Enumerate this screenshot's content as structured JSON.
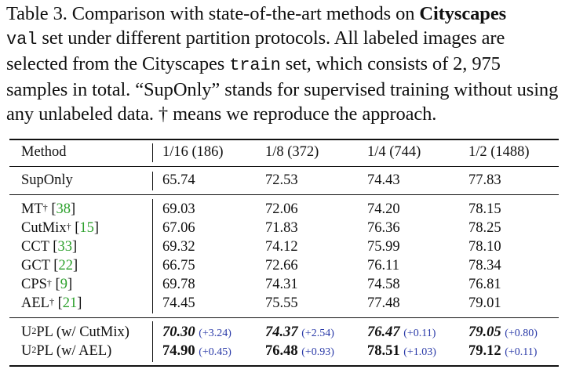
{
  "caption": {
    "t1": "Table 3. Comparison with state-of-the-art methods on ",
    "b1": "Cityscapes",
    "m1": "val",
    "t2": " set under different partition protocols. All labeled images are selected from the Cityscapes ",
    "m2": "train",
    "t3": " set, which consists of 2, 975 samples in total. “SupOnly” stands for supervised training without using any unlabeled data. † means we reproduce the approach."
  },
  "table": {
    "headers": [
      "Method",
      "1/16 (186)",
      "1/8 (372)",
      "1/4 (744)",
      "1/2 (1488)"
    ],
    "suponly": {
      "method": "SupOnly",
      "values": [
        "65.74",
        "72.53",
        "74.43",
        "77.83"
      ]
    },
    "methods": [
      {
        "name": "MT",
        "sup": "†",
        "ref": "38",
        "values": [
          "69.03",
          "72.06",
          "74.20",
          "78.15"
        ]
      },
      {
        "name": "CutMix",
        "sup": "†",
        "ref": "15",
        "values": [
          "67.06",
          "71.83",
          "76.36",
          "78.25"
        ]
      },
      {
        "name": "CCT",
        "sup": "",
        "ref": "33",
        "values": [
          "69.32",
          "74.12",
          "75.99",
          "78.10"
        ]
      },
      {
        "name": "GCT",
        "sup": "",
        "ref": "22",
        "values": [
          "66.75",
          "72.66",
          "76.11",
          "78.34"
        ]
      },
      {
        "name": "CPS",
        "sup": "†",
        "ref": "9",
        "values": [
          "69.78",
          "74.31",
          "74.58",
          "76.81"
        ]
      },
      {
        "name": "AEL",
        "sup": "†",
        "ref": "21",
        "values": [
          "74.45",
          "75.55",
          "77.48",
          "79.01"
        ]
      }
    ],
    "ours": [
      {
        "prefix": "U",
        "sup": "2",
        "suffix": "PL (w/ CutMix)",
        "values": [
          "70.30",
          "74.37",
          "76.47",
          "79.05"
        ],
        "gains": [
          "(+3.24)",
          "(+2.54)",
          "(+0.11)",
          "(+0.80)"
        ]
      },
      {
        "prefix": "U",
        "sup": "2",
        "suffix": "PL (w/ AEL)",
        "values": [
          "74.90",
          "76.48",
          "78.51",
          "79.12"
        ],
        "gains": [
          "(+0.45)",
          "(+0.93)",
          "(+1.03)",
          "(+0.11)"
        ]
      }
    ]
  }
}
